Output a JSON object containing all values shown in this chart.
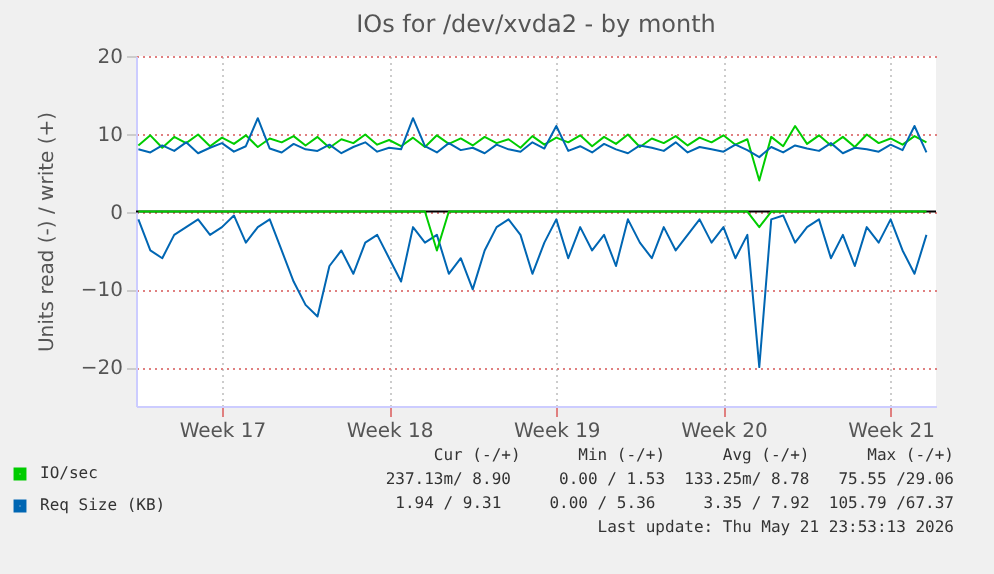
{
  "chart_data": {
    "type": "line",
    "title": "IOs for /dev/xvda2 - by month",
    "ylabel": "Units read (-) / write (+)",
    "categories": [
      null,
      null,
      null,
      null,
      null,
      null,
      null,
      "Week 17",
      null,
      null,
      null,
      null,
      null,
      null,
      null,
      null,
      null,
      null,
      null,
      null,
      null,
      "Week 18",
      null,
      null,
      null,
      null,
      null,
      null,
      null,
      null,
      null,
      null,
      null,
      null,
      null,
      "Week 19",
      null,
      null,
      null,
      null,
      null,
      null,
      null,
      null,
      null,
      null,
      null,
      null,
      null,
      "Week 20",
      null,
      null,
      null,
      null,
      null,
      null,
      null,
      null,
      null,
      null,
      null,
      null,
      null,
      "Week 21",
      null,
      null,
      null
    ],
    "series": [
      {
        "name": "IO/sec",
        "color": "#00cc00",
        "values": [
          8.5,
          9.8,
          8.2,
          9.6,
          8.8,
          9.9,
          8.4,
          9.5,
          8.7,
          9.8,
          8.3,
          9.4,
          8.9,
          9.7,
          8.5,
          9.6,
          8.2,
          9.3,
          8.8,
          9.9,
          8.6,
          9.2,
          8.4,
          9.5,
          8.3,
          9.8,
          8.7,
          9.4,
          8.5,
          9.6,
          8.8,
          9.3,
          8.2,
          9.7,
          8.6,
          9.5,
          8.9,
          9.8,
          8.4,
          9.6,
          8.7,
          9.9,
          8.3,
          9.4,
          8.8,
          9.7,
          8.5,
          9.5,
          8.9,
          9.8,
          8.6,
          9.3,
          4.0,
          9.6,
          8.4,
          11.0,
          8.7,
          9.8,
          8.5,
          9.6,
          8.3,
          9.9,
          8.8,
          9.4,
          8.6,
          9.7,
          8.9
        ]
      },
      {
        "color": "#00cc00",
        "values": [
          0,
          0,
          0,
          0,
          0,
          0,
          0,
          0,
          0,
          0,
          0,
          0,
          0,
          0,
          0,
          0,
          0,
          0,
          0,
          0,
          0,
          0,
          0,
          0,
          0,
          -5,
          0,
          0,
          0,
          0,
          0,
          0,
          0,
          0,
          0,
          0,
          0,
          0,
          0,
          0,
          0,
          0,
          0,
          0,
          0,
          0,
          0,
          0,
          0,
          0,
          0,
          0,
          -2,
          0,
          0,
          0,
          0,
          0,
          0,
          0,
          0,
          0,
          0,
          0,
          0,
          0,
          0
        ]
      },
      {
        "name": "Req Size (KB)",
        "color": "#0066b3",
        "values": [
          8.0,
          7.6,
          8.5,
          7.8,
          8.9,
          7.5,
          8.2,
          8.8,
          7.7,
          8.4,
          12.0,
          8.1,
          7.6,
          8.7,
          8.0,
          7.8,
          8.6,
          7.5,
          8.3,
          8.9,
          7.7,
          8.2,
          8.0,
          12.0,
          8.4,
          7.6,
          8.8,
          7.9,
          8.2,
          7.5,
          8.6,
          8.0,
          7.7,
          8.9,
          8.1,
          11.0,
          7.8,
          8.4,
          7.6,
          8.7,
          8.0,
          7.5,
          8.5,
          8.2,
          7.8,
          8.9,
          7.6,
          8.3,
          8.0,
          7.7,
          8.6,
          7.9,
          7.0,
          8.3,
          7.6,
          8.5,
          8.1,
          7.8,
          8.8,
          7.5,
          8.2,
          8.0,
          7.7,
          8.6,
          7.9,
          11.0,
          7.6
        ]
      },
      {
        "color": "#0066b3",
        "values": [
          -1,
          -5,
          -6,
          -3,
          -2,
          -1,
          -3,
          -2,
          -0.5,
          -4,
          -2,
          -1,
          -5,
          -9,
          -12,
          -13.5,
          -7,
          -5,
          -8,
          -4,
          -3,
          -6,
          -9,
          -2,
          -4,
          -3,
          -8,
          -6,
          -10,
          -5,
          -2,
          -1,
          -3,
          -8,
          -4,
          -1,
          -6,
          -2,
          -5,
          -3,
          -7,
          -1,
          -4,
          -6,
          -2,
          -5,
          -3,
          -1,
          -4,
          -2,
          -6,
          -3,
          -20,
          -1,
          -0.5,
          -4,
          -2,
          -1,
          -6,
          -3,
          -7,
          -2,
          -4,
          -1,
          -5,
          -8,
          -3
        ]
      }
    ],
    "ylim": [
      -25,
      20
    ],
    "yticks": [
      -20,
      -10,
      0,
      10,
      20
    ],
    "ref_lines": [
      {
        "axis": "y",
        "value": 0,
        "color": "#000000"
      }
    ],
    "grid": true,
    "legend": "bottom left",
    "annotations": [
      "Cur (-/+)      Min (-/+)      Avg (-/+)      Max (-/+)",
      "237.13m/ 8.90     0.00 / 1.53  133.25m/ 8.78   75.55 /29.06",
      "1.94 / 9.31     0.00 / 5.36     3.35 / 7.92  105.79 /67.37",
      "Last update: Thu May 21 23:53:13 2026"
    ]
  }
}
